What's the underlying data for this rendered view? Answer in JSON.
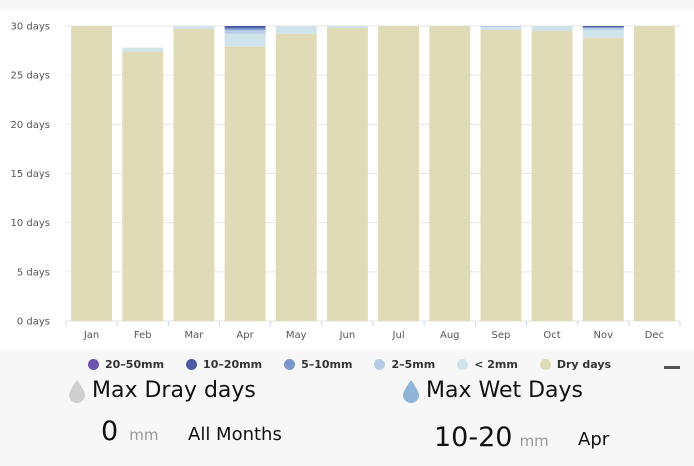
{
  "chart_data": {
    "type": "bar",
    "stacked": true,
    "categories": [
      "Jan",
      "Feb",
      "Mar",
      "Apr",
      "May",
      "Jun",
      "Jul",
      "Aug",
      "Sep",
      "Oct",
      "Nov",
      "Dec"
    ],
    "y_ticks": [
      "0 days",
      "5 days",
      "10 days",
      "15 days",
      "20 days",
      "25 days",
      "30 days"
    ],
    "ylim": [
      0,
      30
    ],
    "grid": true,
    "legend_position": "bottom",
    "series": [
      {
        "name": "Dry days",
        "color": "#dedbb6",
        "values": [
          30,
          27.4,
          29.7,
          27.9,
          29.2,
          29.8,
          30,
          30,
          29.6,
          29.5,
          28.8,
          30
        ]
      },
      {
        "name": "< 2mm",
        "color": "#cfe3ea",
        "values": [
          0,
          0.4,
          0.3,
          1.3,
          0.8,
          0.2,
          0,
          0,
          0.3,
          0.5,
          0.8,
          0
        ]
      },
      {
        "name": "2–5mm",
        "color": "#b7cce6",
        "values": [
          0,
          0,
          0,
          0.4,
          0,
          0,
          0,
          0,
          0.1,
          0,
          0.2,
          0
        ]
      },
      {
        "name": "5–10mm",
        "color": "#7b97c9",
        "values": [
          0,
          0,
          0,
          0.2,
          0,
          0,
          0,
          0,
          0,
          0,
          0.1,
          0
        ]
      },
      {
        "name": "10–20mm",
        "color": "#4c5aa6",
        "values": [
          0,
          0,
          0,
          0.2,
          0,
          0,
          0,
          0,
          0,
          0,
          0.1,
          0
        ]
      },
      {
        "name": "20–50mm",
        "color": "#6a53ac",
        "values": [
          0,
          0,
          0,
          0,
          0,
          0,
          0,
          0,
          0,
          0,
          0,
          0
        ]
      }
    ]
  },
  "legend": [
    {
      "label": "20–50mm",
      "color": "#6a53ac"
    },
    {
      "label": "10–20mm",
      "color": "#4c5aa6"
    },
    {
      "label": "5–10mm",
      "color": "#7b97c9"
    },
    {
      "label": "2–5mm",
      "color": "#b7cce6"
    },
    {
      "label": "< 2mm",
      "color": "#cfe3ea"
    },
    {
      "label": "Dry days",
      "color": "#dedbb6"
    }
  ],
  "stats": {
    "dry": {
      "title": "Max Dray days",
      "value": "0",
      "unit": "mm",
      "month": "All Months",
      "icon": "drop-gray-icon",
      "icon_color": "#cfcfcf"
    },
    "wet": {
      "title": "Max Wet Days",
      "value": "10-20",
      "unit": "mm",
      "month": "Apr",
      "icon": "drop-blue-icon",
      "icon_color": "#8fb4d6"
    }
  }
}
